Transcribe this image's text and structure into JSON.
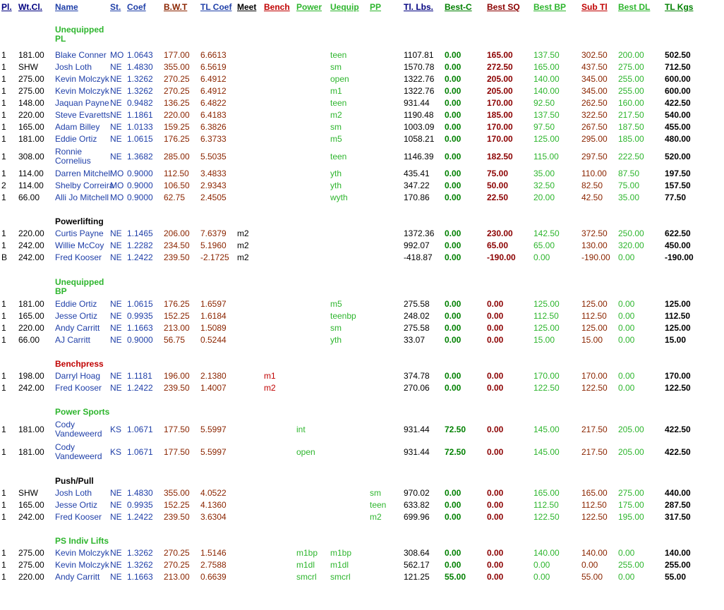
{
  "colors": {
    "blue": "#1f3fa8",
    "red": "#c00000",
    "dark_red": "#8b0000",
    "green": "#2db52d",
    "dark_green": "#008000",
    "brown": "#8b2500"
  },
  "headers": {
    "pl": "Pl.",
    "wt_cl": "Wt.Cl.",
    "name": "Name",
    "st": "St.",
    "coef": "Coef",
    "bwt": "B.W.T",
    "tl_coef": "TL Coef",
    "meet": "Meet",
    "bench": "Bench",
    "power": "Power",
    "uequip": "Uequip",
    "pp": "PP",
    "tl_lbs": "Tl. Lbs.",
    "best_c": "Best-C",
    "best_sq": "Best SQ",
    "best_bp": "Best BP",
    "sub_tl": "Sub Tl",
    "best_dl": "Best DL",
    "tl_kgs": "TL Kgs"
  },
  "sections": [
    {
      "title": "Unequipped PL",
      "color": "green",
      "rows": [
        {
          "pl": "1",
          "wt": "181.00",
          "name": "Blake Conner",
          "st": "MO",
          "coef": "1.0643",
          "bwt": "177.00",
          "tlc": "6.6613",
          "meet": "",
          "bench": "",
          "power": "",
          "uequip": "teen",
          "pp": "",
          "lbs": "1107.81",
          "bc": "0.00",
          "sq": "165.00",
          "bp": "137.50",
          "sub": "302.50",
          "dl": "200.00",
          "kgs": "502.50"
        },
        {
          "pl": "1",
          "wt": "SHW",
          "name": "Josh Loth",
          "st": "NE",
          "coef": "1.4830",
          "bwt": "355.00",
          "tlc": "6.5619",
          "meet": "",
          "bench": "",
          "power": "",
          "uequip": "sm",
          "pp": "",
          "lbs": "1570.78",
          "bc": "0.00",
          "sq": "272.50",
          "bp": "165.00",
          "sub": "437.50",
          "dl": "275.00",
          "kgs": "712.50"
        },
        {
          "pl": "1",
          "wt": "275.00",
          "name": "Kevin Molczyk",
          "st": "NE",
          "coef": "1.3262",
          "bwt": "270.25",
          "tlc": "6.4912",
          "meet": "",
          "bench": "",
          "power": "",
          "uequip": "open",
          "pp": "",
          "lbs": "1322.76",
          "bc": "0.00",
          "sq": "205.00",
          "bp": "140.00",
          "sub": "345.00",
          "dl": "255.00",
          "kgs": "600.00"
        },
        {
          "pl": "1",
          "wt": "275.00",
          "name": "Kevin Molczyk",
          "st": "NE",
          "coef": "1.3262",
          "bwt": "270.25",
          "tlc": "6.4912",
          "meet": "",
          "bench": "",
          "power": "",
          "uequip": "m1",
          "pp": "",
          "lbs": "1322.76",
          "bc": "0.00",
          "sq": "205.00",
          "bp": "140.00",
          "sub": "345.00",
          "dl": "255.00",
          "kgs": "600.00"
        },
        {
          "pl": "1",
          "wt": "148.00",
          "name": "Jaquan Payne",
          "st": "NE",
          "coef": "0.9482",
          "bwt": "136.25",
          "tlc": "6.4822",
          "meet": "",
          "bench": "",
          "power": "",
          "uequip": "teen",
          "pp": "",
          "lbs": "931.44",
          "bc": "0.00",
          "sq": "170.00",
          "bp": "92.50",
          "sub": "262.50",
          "dl": "160.00",
          "kgs": "422.50"
        },
        {
          "pl": "1",
          "wt": "220.00",
          "name": "Steve Evaretts",
          "st": "NE",
          "coef": "1.1861",
          "bwt": "220.00",
          "tlc": "6.4183",
          "meet": "",
          "bench": "",
          "power": "",
          "uequip": "m2",
          "pp": "",
          "lbs": "1190.48",
          "bc": "0.00",
          "sq": "185.00",
          "bp": "137.50",
          "sub": "322.50",
          "dl": "217.50",
          "kgs": "540.00"
        },
        {
          "pl": "1",
          "wt": "165.00",
          "name": "Adam Billey",
          "st": "NE",
          "coef": "1.0133",
          "bwt": "159.25",
          "tlc": "6.3826",
          "meet": "",
          "bench": "",
          "power": "",
          "uequip": "sm",
          "pp": "",
          "lbs": "1003.09",
          "bc": "0.00",
          "sq": "170.00",
          "bp": "97.50",
          "sub": "267.50",
          "dl": "187.50",
          "kgs": "455.00"
        },
        {
          "pl": "1",
          "wt": "181.00",
          "name": "Eddie Ortiz",
          "st": "NE",
          "coef": "1.0615",
          "bwt": "176.25",
          "tlc": "6.3733",
          "meet": "",
          "bench": "",
          "power": "",
          "uequip": "m5",
          "pp": "",
          "lbs": "1058.21",
          "bc": "0.00",
          "sq": "170.00",
          "bp": "125.00",
          "sub": "295.00",
          "dl": "185.00",
          "kgs": "480.00"
        },
        {
          "pl": "1",
          "wt": "308.00",
          "name": "Ronnie Cornelius",
          "st": "NE",
          "coef": "1.3682",
          "bwt": "285.00",
          "tlc": "5.5035",
          "meet": "",
          "bench": "",
          "power": "",
          "uequip": "teen",
          "pp": "",
          "lbs": "1146.39",
          "bc": "0.00",
          "sq": "182.50",
          "bp": "115.00",
          "sub": "297.50",
          "dl": "222.50",
          "kgs": "520.00",
          "tall": true
        },
        {
          "pl": "1",
          "wt": "114.00",
          "name": "Darren Mitchell",
          "st": "MO",
          "coef": "0.9000",
          "bwt": "112.50",
          "tlc": "3.4833",
          "meet": "",
          "bench": "",
          "power": "",
          "uequip": "yth",
          "pp": "",
          "lbs": "435.41",
          "bc": "0.00",
          "sq": "75.00",
          "bp": "35.00",
          "sub": "110.00",
          "dl": "87.50",
          "kgs": "197.50"
        },
        {
          "pl": "2",
          "wt": "114.00",
          "name": "Shelby Correira",
          "st": "MO",
          "coef": "0.9000",
          "bwt": "106.50",
          "tlc": "2.9343",
          "meet": "",
          "bench": "",
          "power": "",
          "uequip": "yth",
          "pp": "",
          "lbs": "347.22",
          "bc": "0.00",
          "sq": "50.00",
          "bp": "32.50",
          "sub": "82.50",
          "dl": "75.00",
          "kgs": "157.50"
        },
        {
          "pl": "1",
          "wt": "66.00",
          "name": "Alli Jo Mitchell",
          "st": "MO",
          "coef": "0.9000",
          "bwt": "62.75",
          "tlc": "2.4505",
          "meet": "",
          "bench": "",
          "power": "",
          "uequip": "wyth",
          "pp": "",
          "lbs": "170.86",
          "bc": "0.00",
          "sq": "22.50",
          "bp": "20.00",
          "sub": "42.50",
          "dl": "35.00",
          "kgs": "77.50"
        }
      ]
    },
    {
      "title": "Powerlifting",
      "color": "black",
      "rows": [
        {
          "pl": "1",
          "wt": "220.00",
          "name": "Curtis Payne",
          "st": "NE",
          "coef": "1.1465",
          "bwt": "206.00",
          "tlc": "7.6379",
          "meet": "m2",
          "bench": "",
          "power": "",
          "uequip": "",
          "pp": "",
          "lbs": "1372.36",
          "bc": "0.00",
          "sq": "230.00",
          "bp": "142.50",
          "sub": "372.50",
          "dl": "250.00",
          "kgs": "622.50"
        },
        {
          "pl": "1",
          "wt": "242.00",
          "name": "Willie McCoy",
          "st": "NE",
          "coef": "1.2282",
          "bwt": "234.50",
          "tlc": "5.1960",
          "meet": "m2",
          "bench": "",
          "power": "",
          "uequip": "",
          "pp": "",
          "lbs": "992.07",
          "bc": "0.00",
          "sq": "65.00",
          "bp": "65.00",
          "sub": "130.00",
          "dl": "320.00",
          "kgs": "450.00"
        },
        {
          "pl": "B",
          "wt": "242.00",
          "name": "Fred Kooser",
          "st": "NE",
          "coef": "1.2422",
          "bwt": "239.50",
          "tlc": "-2.1725",
          "meet": "m2",
          "bench": "",
          "power": "",
          "uequip": "",
          "pp": "",
          "lbs": "-418.87",
          "bc": "0.00",
          "sq": "-190.00",
          "bp": "0.00",
          "sub": "-190.00",
          "dl": "0.00",
          "kgs": "-190.00"
        }
      ]
    },
    {
      "title": "Unequipped BP",
      "color": "green",
      "rows": [
        {
          "pl": "1",
          "wt": "181.00",
          "name": "Eddie Ortiz",
          "st": "NE",
          "coef": "1.0615",
          "bwt": "176.25",
          "tlc": "1.6597",
          "meet": "",
          "bench": "",
          "power": "",
          "uequip": "m5",
          "pp": "",
          "lbs": "275.58",
          "bc": "0.00",
          "sq": "0.00",
          "bp": "125.00",
          "sub": "125.00",
          "dl": "0.00",
          "kgs": "125.00"
        },
        {
          "pl": "1",
          "wt": "165.00",
          "name": "Jesse Ortiz",
          "st": "NE",
          "coef": "0.9935",
          "bwt": "152.25",
          "tlc": "1.6184",
          "meet": "",
          "bench": "",
          "power": "",
          "uequip": "teenbp",
          "pp": "",
          "lbs": "248.02",
          "bc": "0.00",
          "sq": "0.00",
          "bp": "112.50",
          "sub": "112.50",
          "dl": "0.00",
          "kgs": "112.50"
        },
        {
          "pl": "1",
          "wt": "220.00",
          "name": "Andy Carritt",
          "st": "NE",
          "coef": "1.1663",
          "bwt": "213.00",
          "tlc": "1.5089",
          "meet": "",
          "bench": "",
          "power": "",
          "uequip": "sm",
          "pp": "",
          "lbs": "275.58",
          "bc": "0.00",
          "sq": "0.00",
          "bp": "125.00",
          "sub": "125.00",
          "dl": "0.00",
          "kgs": "125.00"
        },
        {
          "pl": "1",
          "wt": "66.00",
          "name": "AJ  Carritt",
          "st": "NE",
          "coef": "0.9000",
          "bwt": "56.75",
          "tlc": "0.5244",
          "meet": "",
          "bench": "",
          "power": "",
          "uequip": "yth",
          "pp": "",
          "lbs": "33.07",
          "bc": "0.00",
          "sq": "0.00",
          "bp": "15.00",
          "sub": "15.00",
          "dl": "0.00",
          "kgs": "15.00"
        }
      ]
    },
    {
      "title": "Benchpress",
      "color": "red",
      "rows": [
        {
          "pl": "1",
          "wt": "198.00",
          "name": "Darryl Hoag",
          "st": "NE",
          "coef": "1.1181",
          "bwt": "196.00",
          "tlc": "2.1380",
          "meet": "",
          "bench": "m1",
          "power": "",
          "uequip": "",
          "pp": "",
          "lbs": "374.78",
          "bc": "0.00",
          "sq": "0.00",
          "bp": "170.00",
          "sub": "170.00",
          "dl": "0.00",
          "kgs": "170.00"
        },
        {
          "pl": "1",
          "wt": "242.00",
          "name": "Fred Kooser",
          "st": "NE",
          "coef": "1.2422",
          "bwt": "239.50",
          "tlc": "1.4007",
          "meet": "",
          "bench": "m2",
          "power": "",
          "uequip": "",
          "pp": "",
          "lbs": "270.06",
          "bc": "0.00",
          "sq": "0.00",
          "bp": "122.50",
          "sub": "122.50",
          "dl": "0.00",
          "kgs": "122.50"
        }
      ]
    },
    {
      "title": "Power Sports",
      "color": "green",
      "rows": [
        {
          "pl": "1",
          "wt": "181.00",
          "name": "Cody Vandeweerd",
          "st": "KS",
          "coef": "1.0671",
          "bwt": "177.50",
          "tlc": "5.5997",
          "meet": "",
          "bench": "",
          "power": "int",
          "uequip": "",
          "pp": "",
          "lbs": "931.44",
          "bc": "72.50",
          "sq": "0.00",
          "bp": "145.00",
          "sub": "217.50",
          "dl": "205.00",
          "kgs": "422.50",
          "tall": true
        },
        {
          "pl": "1",
          "wt": "181.00",
          "name": "Cody Vandeweerd",
          "st": "KS",
          "coef": "1.0671",
          "bwt": "177.50",
          "tlc": "5.5997",
          "meet": "",
          "bench": "",
          "power": "open",
          "uequip": "",
          "pp": "",
          "lbs": "931.44",
          "bc": "72.50",
          "sq": "0.00",
          "bp": "145.00",
          "sub": "217.50",
          "dl": "205.00",
          "kgs": "422.50",
          "tall": true
        }
      ]
    },
    {
      "title": "Push/Pull",
      "color": "black",
      "rows": [
        {
          "pl": "1",
          "wt": "SHW",
          "name": "Josh Loth",
          "st": "NE",
          "coef": "1.4830",
          "bwt": "355.00",
          "tlc": "4.0522",
          "meet": "",
          "bench": "",
          "power": "",
          "uequip": "",
          "pp": "sm",
          "lbs": "970.02",
          "bc": "0.00",
          "sq": "0.00",
          "bp": "165.00",
          "sub": "165.00",
          "dl": "275.00",
          "kgs": "440.00"
        },
        {
          "pl": "1",
          "wt": "165.00",
          "name": "Jesse Ortiz",
          "st": "NE",
          "coef": "0.9935",
          "bwt": "152.25",
          "tlc": "4.1360",
          "meet": "",
          "bench": "",
          "power": "",
          "uequip": "",
          "pp": "teen",
          "lbs": "633.82",
          "bc": "0.00",
          "sq": "0.00",
          "bp": "112.50",
          "sub": "112.50",
          "dl": "175.00",
          "kgs": "287.50"
        },
        {
          "pl": "1",
          "wt": "242.00",
          "name": "Fred Kooser",
          "st": "NE",
          "coef": "1.2422",
          "bwt": "239.50",
          "tlc": "3.6304",
          "meet": "",
          "bench": "",
          "power": "",
          "uequip": "",
          "pp": "m2",
          "lbs": "699.96",
          "bc": "0.00",
          "sq": "0.00",
          "bp": "122.50",
          "sub": "122.50",
          "dl": "195.00",
          "kgs": "317.50"
        }
      ]
    },
    {
      "title": "PS Indiv Lifts",
      "color": "green",
      "rows": [
        {
          "pl": "1",
          "wt": "275.00",
          "name": "Kevin Molczyk",
          "st": "NE",
          "coef": "1.3262",
          "bwt": "270.25",
          "tlc": "1.5146",
          "meet": "",
          "bench": "",
          "power": "m1bp",
          "uequip": "m1bp",
          "pp": "",
          "lbs": "308.64",
          "bc": "0.00",
          "sq": "0.00",
          "bp": "140.00",
          "sub": "140.00",
          "dl": "0.00",
          "kgs": "140.00"
        },
        {
          "pl": "1",
          "wt": "275.00",
          "name": "Kevin Molczyk",
          "st": "NE",
          "coef": "1.3262",
          "bwt": "270.25",
          "tlc": "2.7588",
          "meet": "",
          "bench": "",
          "power": "m1dl",
          "uequip": "m1dl",
          "pp": "",
          "lbs": "562.17",
          "bc": "0.00",
          "sq": "0.00",
          "bp": "0.00",
          "sub": "0.00",
          "dl": "255.00",
          "kgs": "255.00"
        },
        {
          "pl": "1",
          "wt": "220.00",
          "name": "Andy Carritt",
          "st": "NE",
          "coef": "1.1663",
          "bwt": "213.00",
          "tlc": "0.6639",
          "meet": "",
          "bench": "",
          "power": "smcrl",
          "uequip": "smcrl",
          "pp": "",
          "lbs": "121.25",
          "bc": "55.00",
          "sq": "0.00",
          "bp": "0.00",
          "sub": "55.00",
          "dl": "0.00",
          "kgs": "55.00"
        }
      ]
    }
  ]
}
